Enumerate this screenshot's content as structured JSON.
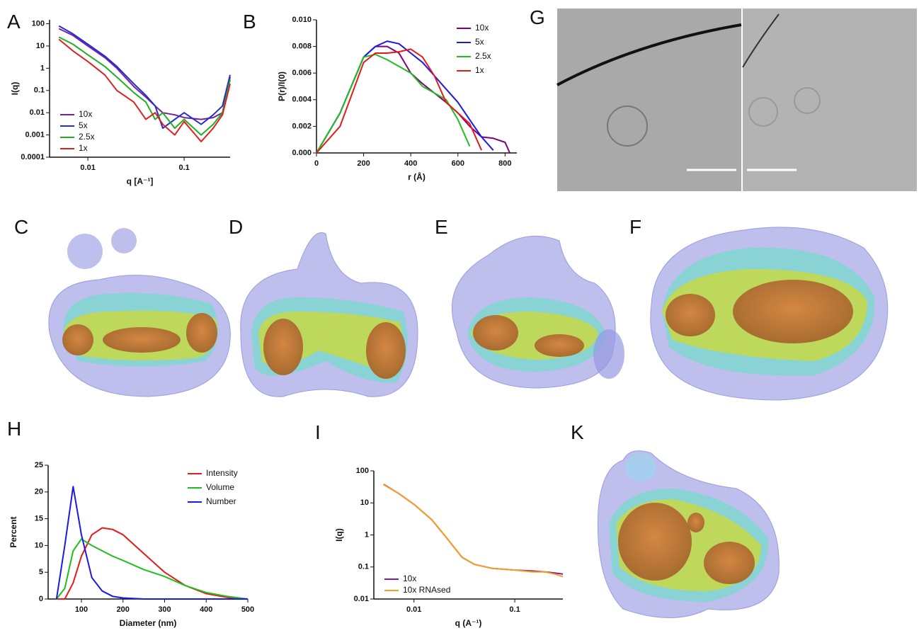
{
  "panels": [
    "C",
    "D",
    "E",
    "F",
    "G",
    "K"
  ],
  "chart_data": [
    {
      "type": "line",
      "panel": "A",
      "xscale": "log",
      "yscale": "log",
      "x_label": "q [A⁻¹]",
      "y_label": "I(q)",
      "xlim": [
        0.004,
        0.3
      ],
      "ylim": [
        0.0001,
        150
      ],
      "xticks": [
        0.01,
        0.1
      ],
      "yticks": [
        0.0001,
        0.001,
        0.01,
        0.1,
        1,
        10,
        100
      ],
      "legend": "lower left",
      "x": [
        0.005,
        0.007,
        0.01,
        0.015,
        0.02,
        0.03,
        0.04,
        0.05,
        0.06,
        0.08,
        0.1,
        0.15,
        0.2,
        0.25,
        0.3
      ],
      "series": [
        {
          "name": "10x",
          "color": "#7b1fa2",
          "values": [
            60,
            30,
            10,
            3,
            1,
            0.15,
            0.05,
            0.02,
            0.01,
            0.008,
            0.006,
            0.005,
            0.006,
            0.01,
            0.4
          ]
        },
        {
          "name": "5x",
          "color": "#1f2fd0",
          "values": [
            80,
            35,
            12,
            3.5,
            1.2,
            0.2,
            0.06,
            0.02,
            0.002,
            0.005,
            0.01,
            0.003,
            0.008,
            0.02,
            0.5
          ]
        },
        {
          "name": "2.5x",
          "color": "#22b022",
          "values": [
            25,
            12,
            4,
            1.2,
            0.4,
            0.08,
            0.03,
            0.005,
            0.01,
            0.002,
            0.005,
            0.001,
            0.003,
            0.01,
            0.3
          ]
        },
        {
          "name": "1x",
          "color": "#e02020",
          "values": [
            20,
            6,
            2,
            0.5,
            0.1,
            0.03,
            0.005,
            0.01,
            0.003,
            0.001,
            0.004,
            0.0005,
            0.002,
            0.008,
            0.2
          ]
        }
      ]
    },
    {
      "type": "line",
      "panel": "B",
      "x_label": "r (Å)",
      "y_label": "P(r)/I(0)",
      "xlim": [
        0,
        850
      ],
      "ylim": [
        0,
        0.01
      ],
      "xticks": [
        0,
        200,
        400,
        600,
        800
      ],
      "yticks": [
        {
          "value": 0,
          "label": "0.000"
        },
        {
          "value": 0.002,
          "label": "0.002"
        },
        {
          "value": 0.004,
          "label": "0.004"
        },
        {
          "value": 0.006,
          "label": "0.006"
        },
        {
          "value": 0.008,
          "label": "0.008"
        },
        {
          "value": 0.01,
          "label": "0.010"
        }
      ],
      "legend": "upper right",
      "x": [
        0,
        100,
        200,
        250,
        300,
        350,
        400,
        450,
        500,
        550,
        600,
        650,
        700,
        750,
        800,
        820
      ],
      "series": [
        {
          "name": "10x",
          "color": "#800080",
          "values": [
            0,
            0.003,
            0.0072,
            0.008,
            0.008,
            0.0075,
            0.006,
            0.0052,
            0.0045,
            0.0038,
            0.003,
            0.002,
            0.0012,
            0.0011,
            0.0008,
            0
          ]
        },
        {
          "name": "5x",
          "color": "#1a1ae6",
          "values": [
            0,
            0.003,
            0.0072,
            0.008,
            0.0084,
            0.0082,
            0.0075,
            0.0068,
            0.0058,
            0.0048,
            0.0038,
            0.0025,
            0.0012,
            0.0002,
            null,
            null
          ]
        },
        {
          "name": "2.5x",
          "color": "#1fbf1f",
          "values": [
            0,
            0.003,
            0.0072,
            0.0074,
            0.007,
            0.0065,
            0.006,
            0.005,
            0.0045,
            0.004,
            0.0025,
            0.0005,
            null,
            null,
            null,
            null
          ]
        },
        {
          "name": "1x",
          "color": "#e61a1a",
          "values": [
            0,
            0.002,
            0.0068,
            0.0075,
            0.0075,
            0.0076,
            0.0078,
            0.0072,
            0.0058,
            0.0038,
            0.003,
            0.0022,
            0.0002,
            null,
            null,
            null
          ]
        }
      ]
    },
    {
      "type": "line",
      "panel": "H",
      "x_label": "Diameter (nm)",
      "y_label": "Percent",
      "xlim": [
        20,
        500
      ],
      "ylim": [
        0,
        25
      ],
      "xticks": [
        100,
        200,
        300,
        400,
        500
      ],
      "yticks": [
        0,
        5,
        10,
        15,
        20,
        25
      ],
      "legend": "upper right",
      "x": [
        40,
        60,
        80,
        100,
        125,
        150,
        175,
        200,
        250,
        300,
        350,
        400,
        450,
        500
      ],
      "series": [
        {
          "name": "Intensity",
          "color": "#e61a1a",
          "values": [
            0,
            0,
            3,
            8,
            12,
            13.3,
            13,
            12,
            8.5,
            5,
            2.5,
            1,
            0.3,
            0
          ]
        },
        {
          "name": "Volume",
          "color": "#1fbf1f",
          "values": [
            0,
            2,
            9,
            11.2,
            10,
            9,
            8,
            7.2,
            5.5,
            4.2,
            2.5,
            1.2,
            0.5,
            0
          ]
        },
        {
          "name": "Number",
          "color": "#1a1ae6",
          "values": [
            0,
            10,
            21,
            12,
            4,
            1.5,
            0.5,
            0.2,
            0,
            0,
            0,
            0,
            0,
            0
          ]
        }
      ]
    },
    {
      "type": "line",
      "panel": "I",
      "xscale": "log",
      "yscale": "log",
      "x_label": "q (A⁻¹)",
      "y_label": "I(q)",
      "xlim": [
        0.004,
        0.3
      ],
      "ylim": [
        0.01,
        100
      ],
      "xticks": [
        0.01,
        0.1
      ],
      "yticks": [
        0.01,
        0.1,
        1,
        10,
        100
      ],
      "legend": "lower left",
      "x": [
        0.005,
        0.007,
        0.01,
        0.015,
        0.02,
        0.03,
        0.04,
        0.06,
        0.1,
        0.15,
        0.2,
        0.25,
        0.3
      ],
      "series": [
        {
          "name": "10x",
          "color": "#7b1fa2",
          "values": [
            38,
            20,
            9,
            3,
            1,
            0.2,
            0.12,
            0.09,
            0.08,
            0.075,
            0.07,
            0.065,
            0.06
          ]
        },
        {
          "name": "10x RNAsed",
          "color": "#f5a020",
          "values": [
            37,
            20,
            9,
            3,
            1,
            0.2,
            0.12,
            0.09,
            0.08,
            0.07,
            0.07,
            0.06,
            0.05
          ]
        }
      ]
    }
  ]
}
